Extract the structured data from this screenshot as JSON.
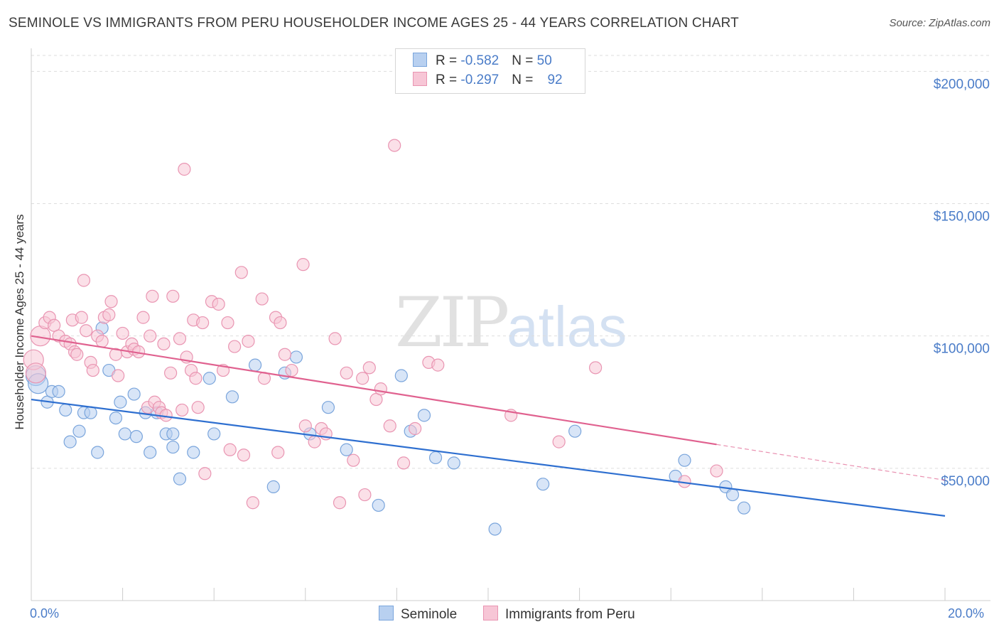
{
  "title": "SEMINOLE VS IMMIGRANTS FROM PERU HOUSEHOLDER INCOME AGES 25 - 44 YEARS CORRELATION CHART",
  "source": "Source: ZipAtlas.com",
  "watermark": {
    "zip": "ZIP",
    "atlas": "atlas"
  },
  "colors": {
    "seminole_fill": "#b8d0f0",
    "seminole_stroke": "#7aa5dc",
    "seminole_line": "#2e6fd0",
    "peru_fill": "#f7c6d6",
    "peru_stroke": "#e995b2",
    "peru_line": "#e0618f",
    "axis_text": "#4a7cc8",
    "grid": "#dddddd"
  },
  "legend": {
    "rows": [
      {
        "r_label": "R = ",
        "r_value": "-0.582",
        "n_label": "N = ",
        "n_value": "50"
      },
      {
        "r_label": "R = ",
        "r_value": "-0.297",
        "n_label": "N = ",
        "n_value": "92"
      }
    ]
  },
  "bottom_legend": {
    "seminole": "Seminole",
    "peru": "Immigrants from Peru"
  },
  "chart_data": {
    "type": "scatter",
    "title": "SEMINOLE VS IMMIGRANTS FROM PERU HOUSEHOLDER INCOME AGES 25 - 44 YEARS CORRELATION CHART",
    "xlabel": "",
    "ylabel": "Householder Income Ages 25 - 44 years",
    "xlim": [
      0,
      20
    ],
    "ylim": [
      0,
      205000
    ],
    "x_tick_labels": [
      "0.0%",
      "20.0%"
    ],
    "y_ticks": [
      50000,
      100000,
      150000,
      200000
    ],
    "y_tick_labels": [
      "$50,000",
      "$100,000",
      "$150,000",
      "$200,000"
    ],
    "grid": true,
    "legend_position": "top-center",
    "series": [
      {
        "name": "Seminole",
        "trend": {
          "x": [
            0,
            20
          ],
          "y": [
            76000,
            32000
          ]
        },
        "points": [
          [
            0.1,
            85000
          ],
          [
            0.15,
            82000
          ],
          [
            0.35,
            75000
          ],
          [
            0.45,
            79000
          ],
          [
            0.6,
            79000
          ],
          [
            0.75,
            72000
          ],
          [
            0.85,
            60000
          ],
          [
            1.05,
            64000
          ],
          [
            1.15,
            71000
          ],
          [
            1.3,
            71000
          ],
          [
            1.45,
            56000
          ],
          [
            1.55,
            103000
          ],
          [
            1.7,
            87000
          ],
          [
            1.85,
            69000
          ],
          [
            1.95,
            75000
          ],
          [
            2.05,
            63000
          ],
          [
            2.25,
            78000
          ],
          [
            2.3,
            62000
          ],
          [
            2.5,
            71000
          ],
          [
            2.6,
            56000
          ],
          [
            2.75,
            71000
          ],
          [
            2.95,
            63000
          ],
          [
            3.1,
            63000
          ],
          [
            3.1,
            58000
          ],
          [
            3.25,
            46000
          ],
          [
            3.55,
            56000
          ],
          [
            3.9,
            84000
          ],
          [
            4.0,
            63000
          ],
          [
            4.4,
            77000
          ],
          [
            4.9,
            89000
          ],
          [
            5.3,
            43000
          ],
          [
            5.55,
            86000
          ],
          [
            5.8,
            92000
          ],
          [
            6.1,
            63000
          ],
          [
            6.5,
            73000
          ],
          [
            6.9,
            57000
          ],
          [
            7.6,
            36000
          ],
          [
            8.1,
            85000
          ],
          [
            8.3,
            64000
          ],
          [
            8.6,
            70000
          ],
          [
            8.85,
            54000
          ],
          [
            9.25,
            52000
          ],
          [
            10.15,
            27000
          ],
          [
            11.2,
            44000
          ],
          [
            11.9,
            64000
          ],
          [
            14.1,
            47000
          ],
          [
            14.3,
            53000
          ],
          [
            15.2,
            43000
          ],
          [
            15.35,
            40000
          ],
          [
            15.6,
            35000
          ]
        ]
      },
      {
        "name": "Immigrants from Peru",
        "trend": {
          "x": [
            0,
            15
          ],
          "y": [
            100000,
            59000
          ]
        },
        "trend_dashed": {
          "x": [
            15,
            20
          ],
          "y": [
            59000,
            45500
          ]
        },
        "points": [
          [
            0.05,
            91000
          ],
          [
            0.1,
            86000
          ],
          [
            0.2,
            100000
          ],
          [
            0.3,
            105000
          ],
          [
            0.4,
            107000
          ],
          [
            0.5,
            104000
          ],
          [
            0.6,
            100000
          ],
          [
            0.75,
            98000
          ],
          [
            0.85,
            97000
          ],
          [
            0.9,
            106000
          ],
          [
            0.95,
            94000
          ],
          [
            1.0,
            93000
          ],
          [
            1.1,
            107000
          ],
          [
            1.15,
            121000
          ],
          [
            1.2,
            102000
          ],
          [
            1.3,
            90000
          ],
          [
            1.35,
            87000
          ],
          [
            1.45,
            100000
          ],
          [
            1.55,
            98000
          ],
          [
            1.6,
            107000
          ],
          [
            1.7,
            108000
          ],
          [
            1.75,
            113000
          ],
          [
            1.85,
            93000
          ],
          [
            1.9,
            85000
          ],
          [
            2.0,
            101000
          ],
          [
            2.1,
            94000
          ],
          [
            2.2,
            97000
          ],
          [
            2.25,
            95000
          ],
          [
            2.35,
            94000
          ],
          [
            2.45,
            107000
          ],
          [
            2.55,
            73000
          ],
          [
            2.6,
            100000
          ],
          [
            2.65,
            115000
          ],
          [
            2.7,
            75000
          ],
          [
            2.8,
            73000
          ],
          [
            2.85,
            71000
          ],
          [
            2.9,
            97000
          ],
          [
            2.95,
            70000
          ],
          [
            3.05,
            86000
          ],
          [
            3.1,
            115000
          ],
          [
            3.25,
            99000
          ],
          [
            3.3,
            72000
          ],
          [
            3.4,
            92000
          ],
          [
            3.5,
            87000
          ],
          [
            3.55,
            106000
          ],
          [
            3.6,
            84000
          ],
          [
            3.65,
            73000
          ],
          [
            3.75,
            105000
          ],
          [
            3.8,
            48000
          ],
          [
            3.95,
            113000
          ],
          [
            4.1,
            112000
          ],
          [
            4.2,
            87000
          ],
          [
            4.3,
            105000
          ],
          [
            4.35,
            57000
          ],
          [
            4.45,
            96000
          ],
          [
            4.6,
            124000
          ],
          [
            4.65,
            55000
          ],
          [
            4.75,
            98000
          ],
          [
            4.85,
            37000
          ],
          [
            5.05,
            114000
          ],
          [
            5.1,
            84000
          ],
          [
            5.35,
            107000
          ],
          [
            5.4,
            56000
          ],
          [
            5.45,
            105000
          ],
          [
            5.55,
            93000
          ],
          [
            5.7,
            87000
          ],
          [
            5.95,
            127000
          ],
          [
            6.0,
            66000
          ],
          [
            6.2,
            60000
          ],
          [
            6.35,
            65000
          ],
          [
            6.45,
            63000
          ],
          [
            6.65,
            99000
          ],
          [
            6.75,
            37000
          ],
          [
            6.9,
            86000
          ],
          [
            7.05,
            53000
          ],
          [
            7.25,
            84000
          ],
          [
            7.3,
            40000
          ],
          [
            7.4,
            88000
          ],
          [
            7.55,
            76000
          ],
          [
            7.65,
            80000
          ],
          [
            7.85,
            66000
          ],
          [
            7.95,
            172000
          ],
          [
            8.15,
            52000
          ],
          [
            8.4,
            65000
          ],
          [
            8.7,
            90000
          ],
          [
            8.9,
            89000
          ],
          [
            10.5,
            70000
          ],
          [
            11.55,
            60000
          ],
          [
            12.35,
            88000
          ],
          [
            14.3,
            45000
          ],
          [
            15.0,
            49000
          ],
          [
            3.35,
            163000
          ]
        ]
      }
    ]
  }
}
